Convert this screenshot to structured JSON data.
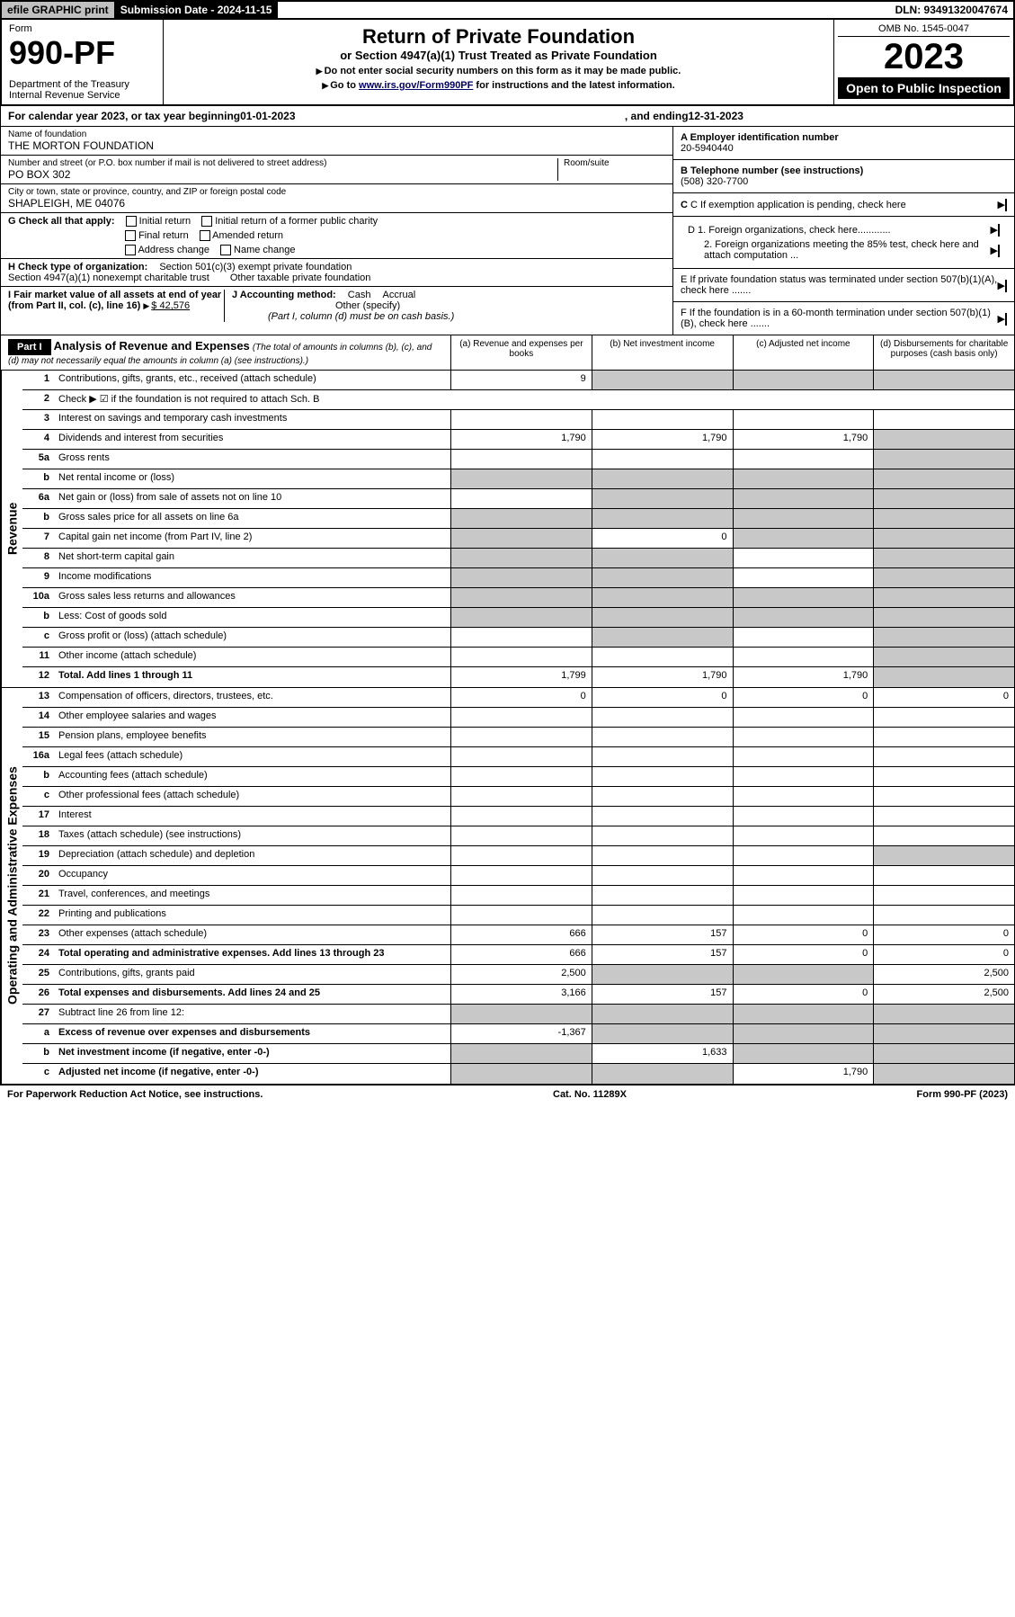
{
  "topbar": {
    "efile": "efile GRAPHIC print",
    "submission": "Submission Date - 2024-11-15",
    "dln": "DLN: 93491320047674"
  },
  "header": {
    "form": "Form",
    "num": "990-PF",
    "dept": "Department of the Treasury\nInternal Revenue Service",
    "title": "Return of Private Foundation",
    "subtitle": "or Section 4947(a)(1) Trust Treated as Private Foundation",
    "inst1": "Do not enter social security numbers on this form as it may be made public.",
    "inst2_pre": "Go to ",
    "inst2_link": "www.irs.gov/Form990PF",
    "inst2_post": " for instructions and the latest information.",
    "omb": "OMB No. 1545-0047",
    "year": "2023",
    "open": "Open to Public Inspection"
  },
  "cal": {
    "pre": "For calendar year 2023, or tax year beginning ",
    "begin": "01-01-2023",
    "mid": ", and ending ",
    "end": "12-31-2023"
  },
  "id": {
    "name_lbl": "Name of foundation",
    "name": "THE MORTON FOUNDATION",
    "addr_lbl": "Number and street (or P.O. box number if mail is not delivered to street address)",
    "addr": "PO BOX 302",
    "room_lbl": "Room/suite",
    "city_lbl": "City or town, state or province, country, and ZIP or foreign postal code",
    "city": "SHAPLEIGH, ME  04076",
    "a_lbl": "A Employer identification number",
    "a_val": "20-5940440",
    "b_lbl": "B Telephone number (see instructions)",
    "b_val": "(508) 320-7700",
    "c_lbl": "C If exemption application is pending, check here",
    "d1": "D 1. Foreign organizations, check here............",
    "d2": "2. Foreign organizations meeting the 85% test, check here and attach computation ...",
    "e": "E  If private foundation status was terminated under section 507(b)(1)(A), check here .......",
    "f": "F  If the foundation is in a 60-month termination under section 507(b)(1)(B), check here .......",
    "g_lbl": "G Check all that apply:",
    "g_opts": [
      "Initial return",
      "Initial return of a former public charity",
      "Final return",
      "Amended return",
      "Address change",
      "Name change"
    ],
    "h_lbl": "H Check type of organization:",
    "h1": "Section 501(c)(3) exempt private foundation",
    "h2": "Section 4947(a)(1) nonexempt charitable trust",
    "h3": "Other taxable private foundation",
    "i_lbl": "I Fair market value of all assets at end of year (from Part II, col. (c), line 16)",
    "i_val": "$  42,576",
    "j_lbl": "J Accounting method:",
    "j_cash": "Cash",
    "j_acc": "Accrual",
    "j_other": "Other (specify)",
    "j_note": "(Part I, column (d) must be on cash basis.)"
  },
  "part1": {
    "bar": "Part I",
    "title": "Analysis of Revenue and Expenses",
    "note": "(The total of amounts in columns (b), (c), and (d) may not necessarily equal the amounts in column (a) (see instructions).)",
    "cols": [
      "(a)   Revenue and expenses per books",
      "(b)   Net investment income",
      "(c)   Adjusted net income",
      "(d)  Disbursements for charitable purposes (cash basis only)"
    ]
  },
  "side": {
    "rev": "Revenue",
    "exp": "Operating and Administrative Expenses"
  },
  "rows": [
    {
      "n": "1",
      "d": "Contributions, gifts, grants, etc., received (attach schedule)",
      "a": "9",
      "bgrey": true,
      "cgrey": true,
      "dgrey": true
    },
    {
      "n": "2",
      "d": "Check ▶ ☑ if the foundation is not required to attach Sch. B",
      "nocols": true
    },
    {
      "n": "3",
      "d": "Interest on savings and temporary cash investments"
    },
    {
      "n": "4",
      "d": "Dividends and interest from securities",
      "a": "1,790",
      "b": "1,790",
      "c": "1,790",
      "dgrey": true
    },
    {
      "n": "5a",
      "d": "Gross rents",
      "dgrey": true
    },
    {
      "n": "b",
      "d": "Net rental income or (loss)",
      "agrey": true,
      "bgrey": true,
      "cgrey": true,
      "dgrey": true
    },
    {
      "n": "6a",
      "d": "Net gain or (loss) from sale of assets not on line 10",
      "bgrey": true,
      "cgrey": true,
      "dgrey": true
    },
    {
      "n": "b",
      "d": "Gross sales price for all assets on line 6a",
      "agrey": true,
      "bgrey": true,
      "cgrey": true,
      "dgrey": true
    },
    {
      "n": "7",
      "d": "Capital gain net income (from Part IV, line 2)",
      "agrey": true,
      "b": "0",
      "cgrey": true,
      "dgrey": true
    },
    {
      "n": "8",
      "d": "Net short-term capital gain",
      "agrey": true,
      "bgrey": true,
      "dgrey": true
    },
    {
      "n": "9",
      "d": "Income modifications",
      "agrey": true,
      "bgrey": true,
      "dgrey": true
    },
    {
      "n": "10a",
      "d": "Gross sales less returns and allowances",
      "agrey": true,
      "bgrey": true,
      "cgrey": true,
      "dgrey": true
    },
    {
      "n": "b",
      "d": "Less: Cost of goods sold",
      "agrey": true,
      "bgrey": true,
      "cgrey": true,
      "dgrey": true
    },
    {
      "n": "c",
      "d": "Gross profit or (loss) (attach schedule)",
      "bgrey": true,
      "dgrey": true
    },
    {
      "n": "11",
      "d": "Other income (attach schedule)",
      "dgrey": true
    },
    {
      "n": "12",
      "d": "Total. Add lines 1 through 11",
      "bold": true,
      "a": "1,799",
      "b": "1,790",
      "c": "1,790",
      "dgrey": true
    }
  ],
  "erows": [
    {
      "n": "13",
      "d": "Compensation of officers, directors, trustees, etc.",
      "a": "0",
      "b": "0",
      "c": "0",
      "dd": "0"
    },
    {
      "n": "14",
      "d": "Other employee salaries and wages"
    },
    {
      "n": "15",
      "d": "Pension plans, employee benefits"
    },
    {
      "n": "16a",
      "d": "Legal fees (attach schedule)"
    },
    {
      "n": "b",
      "d": "Accounting fees (attach schedule)"
    },
    {
      "n": "c",
      "d": "Other professional fees (attach schedule)"
    },
    {
      "n": "17",
      "d": "Interest"
    },
    {
      "n": "18",
      "d": "Taxes (attach schedule) (see instructions)"
    },
    {
      "n": "19",
      "d": "Depreciation (attach schedule) and depletion",
      "dgrey": true
    },
    {
      "n": "20",
      "d": "Occupancy"
    },
    {
      "n": "21",
      "d": "Travel, conferences, and meetings"
    },
    {
      "n": "22",
      "d": "Printing and publications"
    },
    {
      "n": "23",
      "d": "Other expenses (attach schedule)",
      "a": "666",
      "b": "157",
      "c": "0",
      "dd": "0"
    },
    {
      "n": "24",
      "d": "Total operating and administrative expenses. Add lines 13 through 23",
      "bold": true,
      "a": "666",
      "b": "157",
      "c": "0",
      "dd": "0"
    },
    {
      "n": "25",
      "d": "Contributions, gifts, grants paid",
      "a": "2,500",
      "bgrey": true,
      "cgrey": true,
      "dd": "2,500"
    },
    {
      "n": "26",
      "d": "Total expenses and disbursements. Add lines 24 and 25",
      "bold": true,
      "a": "3,166",
      "b": "157",
      "c": "0",
      "dd": "2,500"
    },
    {
      "n": "27",
      "d": "Subtract line 26 from line 12:",
      "agrey": true,
      "bgrey": true,
      "cgrey": true,
      "dgrey": true
    },
    {
      "n": "a",
      "d": "Excess of revenue over expenses and disbursements",
      "bold": true,
      "a": "-1,367",
      "bgrey": true,
      "cgrey": true,
      "dgrey": true
    },
    {
      "n": "b",
      "d": "Net investment income (if negative, enter -0-)",
      "bold": true,
      "agrey": true,
      "b": "1,633",
      "cgrey": true,
      "dgrey": true
    },
    {
      "n": "c",
      "d": "Adjusted net income (if negative, enter -0-)",
      "bold": true,
      "agrey": true,
      "bgrey": true,
      "c": "1,790",
      "dgrey": true
    }
  ],
  "footer": {
    "l": "For Paperwork Reduction Act Notice, see instructions.",
    "c": "Cat. No. 11289X",
    "r": "Form 990-PF (2023)"
  }
}
